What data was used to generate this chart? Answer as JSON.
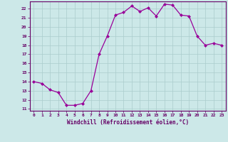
{
  "x": [
    0,
    1,
    2,
    3,
    4,
    5,
    6,
    7,
    8,
    9,
    10,
    11,
    12,
    13,
    14,
    15,
    16,
    17,
    18,
    19,
    20,
    21,
    22,
    23
  ],
  "y": [
    14.0,
    13.8,
    13.1,
    12.8,
    11.4,
    11.4,
    11.6,
    13.0,
    17.0,
    19.0,
    21.3,
    21.6,
    22.3,
    21.7,
    22.1,
    21.2,
    22.5,
    22.4,
    21.3,
    21.2,
    19.0,
    18.0,
    18.2,
    18.0
  ],
  "line_color": "#990099",
  "marker": "D",
  "marker_size": 2.0,
  "bg_color": "#cce8e8",
  "grid_color": "#aacccc",
  "xlabel": "Windchill (Refroidissement éolien,°C)",
  "xlim": [
    -0.5,
    23.5
  ],
  "ylim": [
    10.8,
    22.8
  ],
  "yticks": [
    11,
    12,
    13,
    14,
    15,
    16,
    17,
    18,
    19,
    20,
    21,
    22
  ],
  "xticks": [
    0,
    1,
    2,
    3,
    4,
    5,
    6,
    7,
    8,
    9,
    10,
    11,
    12,
    13,
    14,
    15,
    16,
    17,
    18,
    19,
    20,
    21,
    22,
    23
  ],
  "tick_color": "#660066",
  "label_color": "#660066",
  "axis_color": "#660066",
  "tick_fontsize": 4.5,
  "xlabel_fontsize": 5.5
}
